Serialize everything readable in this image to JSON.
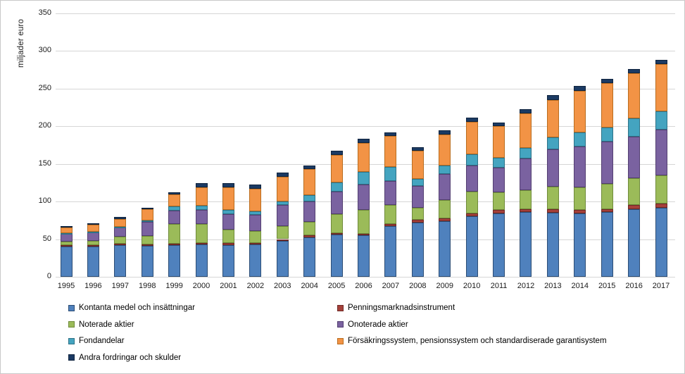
{
  "chart_data": {
    "type": "bar",
    "stacked": true,
    "title": "",
    "xlabel": "",
    "ylabel": "miljader euro",
    "ylim": [
      0,
      350
    ],
    "ytick_step": 50,
    "grid": true,
    "legend_position": "bottom-two-columns",
    "categories": [
      "1995",
      "1996",
      "1997",
      "1998",
      "1999",
      "2000",
      "2001",
      "2002",
      "2003",
      "2004",
      "2005",
      "2006",
      "2007",
      "2008",
      "2009",
      "2010",
      "2011",
      "2012",
      "2013",
      "2014",
      "2015",
      "2016",
      "2017"
    ],
    "series": [
      {
        "name": "Kontanta medel och insättningar",
        "color": "#4F81BD",
        "border": "#2C4D75",
        "values": [
          40,
          40,
          42,
          41,
          42,
          43,
          42,
          43,
          48,
          52,
          56,
          55,
          67,
          72,
          74,
          80,
          84,
          86,
          85,
          84,
          86,
          90,
          92
        ]
      },
      {
        "name": "Penningsmarknadsinstrument",
        "color": "#A5403A",
        "border": "#702A26",
        "values": [
          2,
          2,
          2,
          2,
          2,
          2,
          3,
          2,
          2,
          3,
          2,
          2,
          3,
          4,
          4,
          4,
          5,
          4,
          5,
          5,
          4,
          5,
          5
        ]
      },
      {
        "name": "Noterade aktier",
        "color": "#9BBB59",
        "border": "#6F8B3A",
        "values": [
          5,
          6,
          9,
          11,
          26,
          25,
          18,
          16,
          17,
          18,
          25,
          32,
          25,
          16,
          24,
          29,
          23,
          25,
          30,
          30,
          33,
          36,
          38
        ]
      },
      {
        "name": "Onoterade aktier",
        "color": "#7A62A0",
        "border": "#533F71",
        "values": [
          10,
          11,
          12,
          19,
          18,
          19,
          20,
          21,
          28,
          27,
          30,
          33,
          32,
          29,
          34,
          35,
          33,
          42,
          49,
          54,
          56,
          55,
          60
        ]
      },
      {
        "name": "Fondandelar",
        "color": "#44A4C0",
        "border": "#2D7287",
        "values": [
          1,
          1,
          1,
          2,
          5,
          5,
          6,
          5,
          5,
          8,
          12,
          17,
          19,
          9,
          12,
          15,
          13,
          14,
          16,
          19,
          19,
          24,
          25
        ]
      },
      {
        "name": "Försäkringssystem, pensionssystem och standardiserade garantisystem",
        "color": "#F29345",
        "border": "#BA6D1F",
        "values": [
          7,
          9,
          11,
          15,
          16,
          25,
          30,
          30,
          33,
          35,
          37,
          39,
          41,
          37,
          41,
          43,
          42,
          46,
          50,
          55,
          59,
          60,
          62
        ]
      },
      {
        "name": "Andra fordringar och skulder",
        "color": "#1B3A63",
        "border": "#10243F",
        "values": [
          2,
          2,
          2,
          2,
          3,
          5,
          5,
          5,
          5,
          5,
          5,
          5,
          5,
          5,
          5,
          5,
          5,
          5,
          6,
          6,
          6,
          6,
          6
        ]
      }
    ],
    "legend_columns": {
      "left": [
        0,
        2,
        4,
        6
      ],
      "right": [
        1,
        3,
        5
      ]
    }
  },
  "layout_note": "stacked column chart, horizontal gridlines every 50, legend below plot"
}
